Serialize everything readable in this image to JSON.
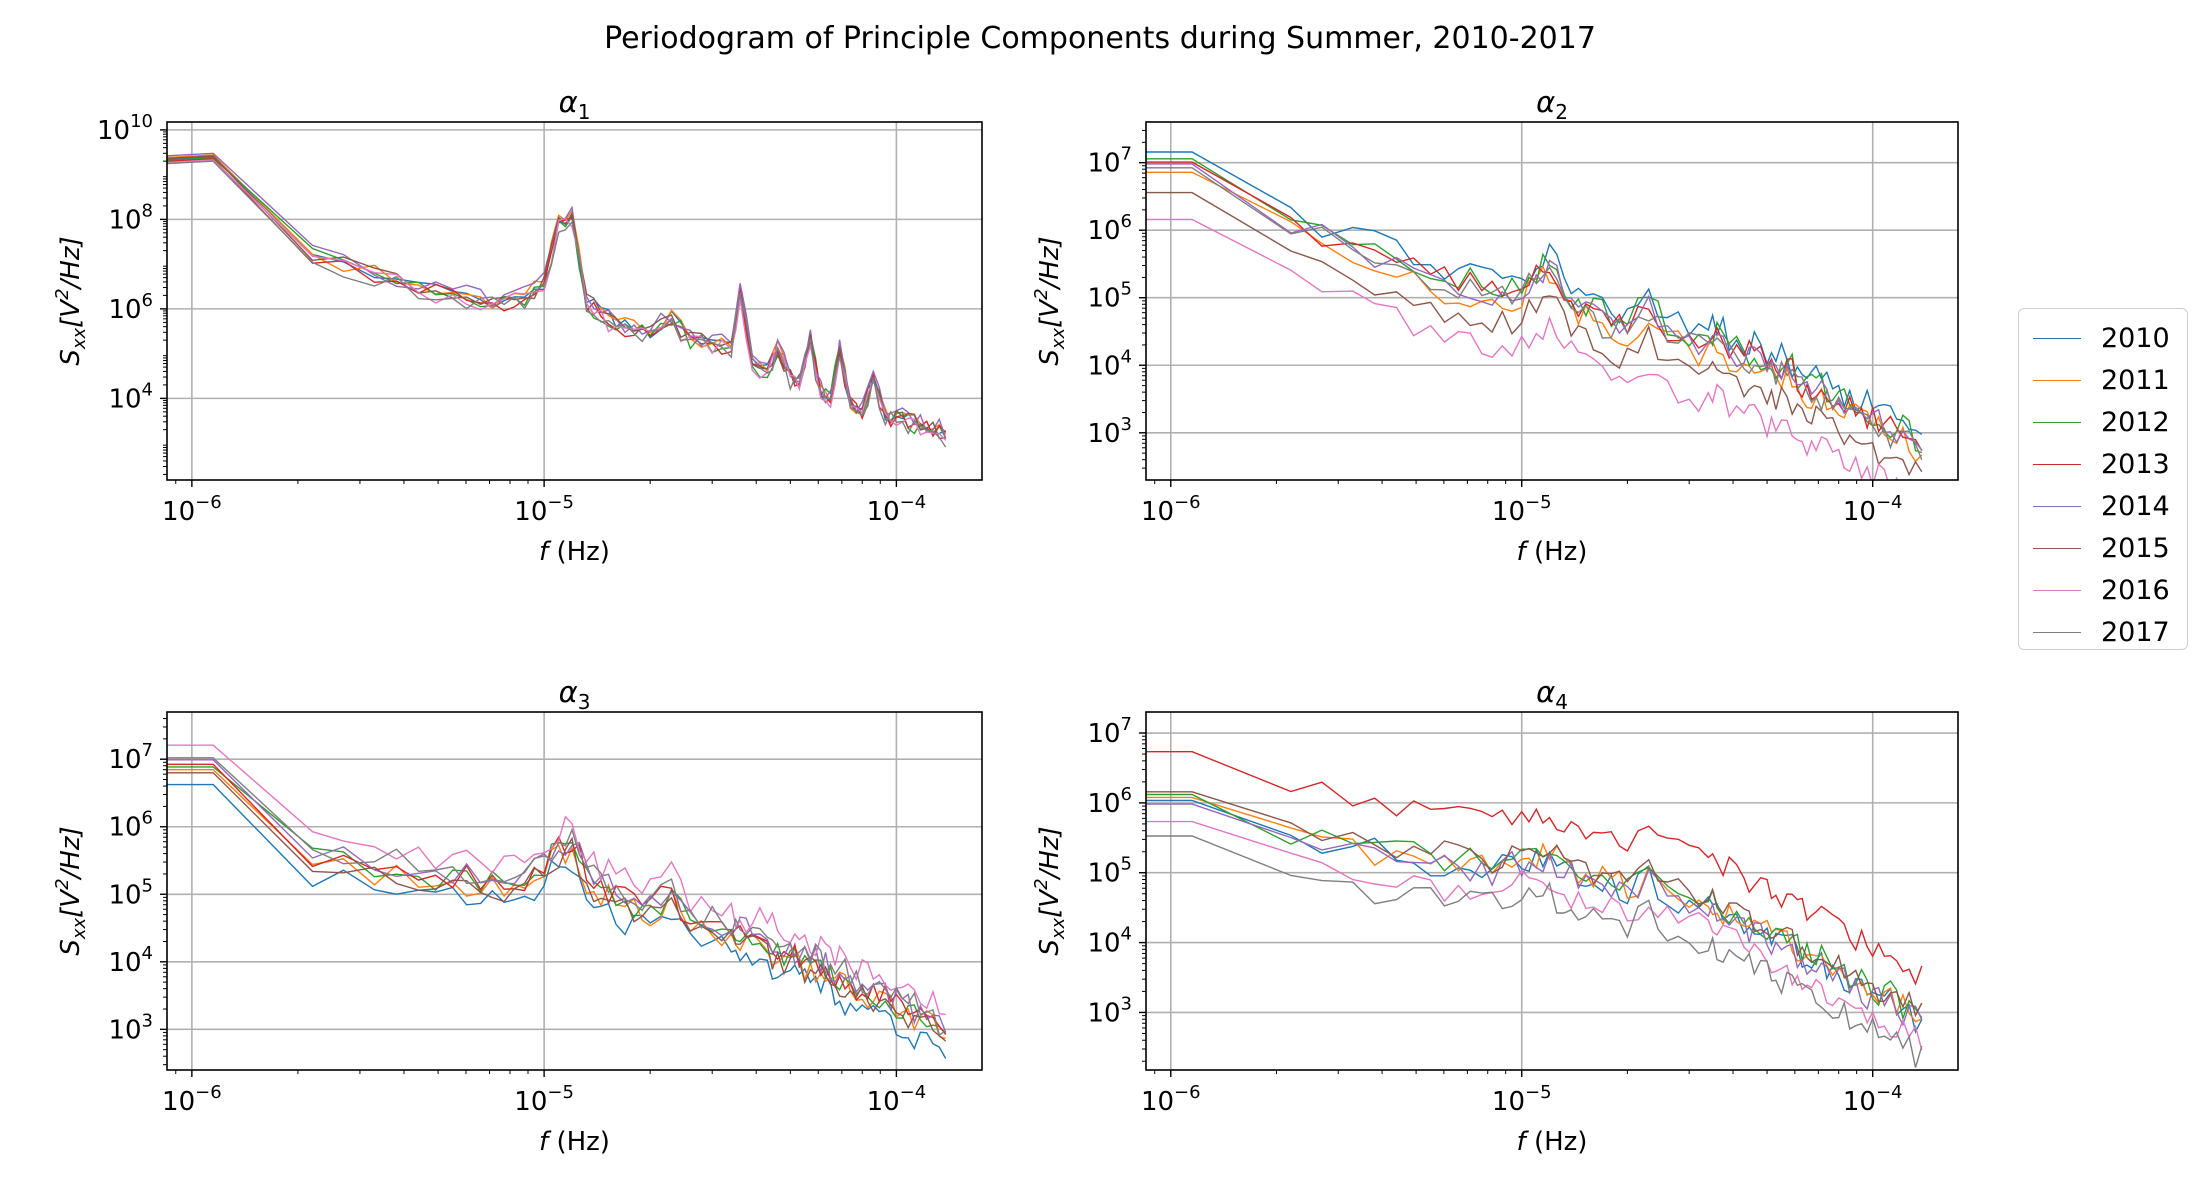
{
  "title": "Periodogram of Principle Components during Summer, 2010-2017",
  "legend": {
    "items": [
      {
        "label": "2010",
        "color": "#1f77b4"
      },
      {
        "label": "2011",
        "color": "#ff7f0e"
      },
      {
        "label": "2012",
        "color": "#2ca02c"
      },
      {
        "label": "2013",
        "color": "#d62728"
      },
      {
        "label": "2014",
        "color": "#9467bd"
      },
      {
        "label": "2015",
        "color": "#8c564b"
      },
      {
        "label": "2016",
        "color": "#e377c2"
      },
      {
        "label": "2017",
        "color": "#7f7f7f"
      }
    ]
  },
  "chart_data": [
    {
      "type": "line",
      "title": "α",
      "title_sub": "1",
      "xlabel_italic": "f",
      "xlabel_rest": " (Hz)",
      "ylabel_main": "S",
      "ylabel_sub": "xx",
      "ylabel_bracket": "[V",
      "ylabel_sup": "2",
      "ylabel_end": "/Hz]",
      "x_scale": "log",
      "y_scale": "log",
      "xlim": [
        8.5e-07,
        0.000175
      ],
      "ylim": [
        150,
        15000000000
      ],
      "xticks": [
        {
          "value": 1e-06,
          "label": "10",
          "exp": "−6"
        },
        {
          "value": 1e-05,
          "label": "10",
          "exp": "−5"
        },
        {
          "value": 0.0001,
          "label": "10",
          "exp": "−4"
        }
      ],
      "yticks": [
        {
          "value": 10000,
          "label": "10",
          "exp": "4"
        },
        {
          "value": 1000000,
          "label": "10",
          "exp": "6"
        },
        {
          "value": 100000000,
          "label": "10",
          "exp": "8"
        },
        {
          "value": 10000000000,
          "label": "10",
          "exp": "10"
        }
      ],
      "grid": true,
      "series_shape": {
        "x": [
          8.5e-07,
          1.15e-06,
          2.2e-06,
          3.3e-06,
          4.4e-06,
          5.5e-06,
          6.6e-06,
          7.7e-06,
          8.8e-06,
          1e-05,
          1.1e-05,
          1.2e-05,
          1.32e-05,
          1.45e-05,
          1.6e-05,
          1.8e-05,
          2e-05,
          2.3e-05,
          2.6e-05,
          3e-05,
          3.4e-05,
          3.6e-05,
          3.9e-05,
          4.3e-05,
          4.6e-05,
          5e-05,
          5.3e-05,
          5.7e-05,
          6.1e-05,
          6.5e-05,
          6.9e-05,
          7.4e-05,
          8e-05,
          8.6e-05,
          9.3e-05,
          0.0001,
          0.000108,
          0.000117,
          0.000127,
          0.000138
        ],
        "y": [
          2200000000,
          2500000000,
          17000000,
          6000000,
          3000000,
          2000000,
          1600000,
          1500000,
          1800000,
          4000000,
          80000000,
          110000000,
          1500000,
          800000,
          450000,
          350000,
          280000,
          600000,
          200000,
          150000,
          130000,
          2500000,
          70000,
          40000,
          130000,
          30000,
          25000,
          200000,
          14000,
          11000,
          120000,
          8000,
          6000,
          30000,
          4500,
          3500,
          3000,
          2500,
          2000,
          1500
        ]
      },
      "series_scale": [
        1.0,
        1.1,
        0.95,
        0.9,
        1.2,
        1.05,
        0.85,
        0.8
      ]
    },
    {
      "type": "line",
      "title": "α",
      "title_sub": "2",
      "xlabel_italic": "f",
      "xlabel_rest": " (Hz)",
      "ylabel_main": "S",
      "ylabel_sub": "xx",
      "ylabel_bracket": "[V",
      "ylabel_sup": "2",
      "ylabel_end": "/Hz]",
      "x_scale": "log",
      "y_scale": "log",
      "xlim": [
        8.5e-07,
        0.000175
      ],
      "ylim": [
        200,
        40000000
      ],
      "xticks": [
        {
          "value": 1e-06,
          "label": "10",
          "exp": "−6"
        },
        {
          "value": 1e-05,
          "label": "10",
          "exp": "−5"
        },
        {
          "value": 0.0001,
          "label": "10",
          "exp": "−4"
        }
      ],
      "yticks": [
        {
          "value": 1000,
          "label": "10",
          "exp": "3"
        },
        {
          "value": 10000,
          "label": "10",
          "exp": "4"
        },
        {
          "value": 100000,
          "label": "10",
          "exp": "5"
        },
        {
          "value": 1000000,
          "label": "10",
          "exp": "6"
        },
        {
          "value": 10000000,
          "label": "10",
          "exp": "7"
        }
      ],
      "grid": true,
      "series_shape": {
        "x": [
          8.5e-07,
          1.15e-06,
          2.2e-06,
          3.3e-06,
          4.4e-06,
          5.5e-06,
          6.6e-06,
          7.7e-06,
          8.8e-06,
          1e-05,
          1.1e-05,
          1.2e-05,
          1.32e-05,
          1.45e-05,
          1.6e-05,
          1.8e-05,
          2e-05,
          2.3e-05,
          2.6e-05,
          3e-05,
          3.4e-05,
          3.6e-05,
          3.9e-05,
          4.3e-05,
          4.6e-05,
          5e-05,
          5.3e-05,
          5.7e-05,
          6.1e-05,
          6.5e-05,
          6.9e-05,
          7.4e-05,
          8e-05,
          8.6e-05,
          9.3e-05,
          0.0001,
          0.000108,
          0.000117,
          0.000127,
          0.000138
        ],
        "y": [
          12000000,
          12000000,
          1500000,
          700000,
          400000,
          250000,
          200000,
          160000,
          150000,
          160000,
          250000,
          400000,
          150000,
          90000,
          70000,
          50000,
          45000,
          90000,
          40000,
          30000,
          25000,
          35000,
          20000,
          15000,
          18000,
          11000,
          9000,
          12000,
          7000,
          5500,
          6000,
          4500,
          3500,
          3000,
          2500,
          2000,
          1600,
          1300,
          1100,
          800
        ]
      },
      "series_scale": [
        1.2,
        0.6,
        0.95,
        0.85,
        0.8,
        0.3,
        0.12,
        0.7
      ]
    },
    {
      "type": "line",
      "title": "α",
      "title_sub": "3",
      "xlabel_italic": "f",
      "xlabel_rest": " (Hz)",
      "ylabel_main": "S",
      "ylabel_sub": "xx",
      "ylabel_bracket": "[V",
      "ylabel_sup": "2",
      "ylabel_end": "/Hz]",
      "x_scale": "log",
      "y_scale": "log",
      "xlim": [
        8.5e-07,
        0.000175
      ],
      "ylim": [
        250,
        50000000
      ],
      "xticks": [
        {
          "value": 1e-06,
          "label": "10",
          "exp": "−6"
        },
        {
          "value": 1e-05,
          "label": "10",
          "exp": "−5"
        },
        {
          "value": 0.0001,
          "label": "10",
          "exp": "−4"
        }
      ],
      "yticks": [
        {
          "value": 1000,
          "label": "10",
          "exp": "3"
        },
        {
          "value": 10000,
          "label": "10",
          "exp": "4"
        },
        {
          "value": 100000,
          "label": "10",
          "exp": "5"
        },
        {
          "value": 1000000,
          "label": "10",
          "exp": "6"
        },
        {
          "value": 10000000,
          "label": "10",
          "exp": "7"
        }
      ],
      "grid": true,
      "series_shape": {
        "x": [
          8.5e-07,
          1.15e-06,
          2.2e-06,
          3.3e-06,
          4.4e-06,
          5.5e-06,
          6.6e-06,
          7.7e-06,
          8.8e-06,
          1e-05,
          1.1e-05,
          1.2e-05,
          1.32e-05,
          1.45e-05,
          1.6e-05,
          1.8e-05,
          2e-05,
          2.3e-05,
          2.6e-05,
          3e-05,
          3.4e-05,
          3.6e-05,
          3.9e-05,
          4.3e-05,
          4.6e-05,
          5e-05,
          5.3e-05,
          5.7e-05,
          6.1e-05,
          6.5e-05,
          6.9e-05,
          7.4e-05,
          8e-05,
          8.6e-05,
          9.3e-05,
          0.0001,
          0.000108,
          0.000117,
          0.000127,
          0.000138
        ],
        "y": [
          7000000,
          7000000,
          300000,
          200000,
          180000,
          150000,
          130000,
          120000,
          130000,
          250000,
          400000,
          500000,
          150000,
          100000,
          80000,
          60000,
          50000,
          90000,
          35000,
          30000,
          25000,
          22000,
          18000,
          15000,
          13000,
          11000,
          9000,
          8000,
          7000,
          6000,
          5000,
          4200,
          3500,
          3000,
          2500,
          2000,
          1600,
          1300,
          1100,
          700
        ]
      },
      "series_scale": [
        0.6,
        1.0,
        1.1,
        1.2,
        1.4,
        0.9,
        2.3,
        1.5
      ]
    },
    {
      "type": "line",
      "title": "α",
      "title_sub": "4",
      "xlabel_italic": "f",
      "xlabel_rest": " (Hz)",
      "ylabel_main": "S",
      "ylabel_sub": "xx",
      "ylabel_bracket": "[V",
      "ylabel_sup": "2",
      "ylabel_end": "/Hz]",
      "x_scale": "log",
      "y_scale": "log",
      "xlim": [
        8.5e-07,
        0.000175
      ],
      "ylim": [
        150,
        20000000
      ],
      "xticks": [
        {
          "value": 1e-06,
          "label": "10",
          "exp": "−6"
        },
        {
          "value": 1e-05,
          "label": "10",
          "exp": "−5"
        },
        {
          "value": 0.0001,
          "label": "10",
          "exp": "−4"
        }
      ],
      "yticks": [
        {
          "value": 1000,
          "label": "10",
          "exp": "3"
        },
        {
          "value": 10000,
          "label": "10",
          "exp": "4"
        },
        {
          "value": 100000,
          "label": "10",
          "exp": "5"
        },
        {
          "value": 1000000,
          "label": "10",
          "exp": "6"
        },
        {
          "value": 10000000,
          "label": "10",
          "exp": "7"
        }
      ],
      "grid": true,
      "series_shape": {
        "x": [
          8.5e-07,
          1.15e-06,
          2.2e-06,
          3.3e-06,
          4.4e-06,
          5.5e-06,
          6.6e-06,
          7.7e-06,
          8.8e-06,
          1e-05,
          1.1e-05,
          1.2e-05,
          1.32e-05,
          1.45e-05,
          1.6e-05,
          1.8e-05,
          2e-05,
          2.3e-05,
          2.6e-05,
          3e-05,
          3.4e-05,
          3.6e-05,
          3.9e-05,
          4.3e-05,
          4.6e-05,
          5e-05,
          5.3e-05,
          5.7e-05,
          6.1e-05,
          6.5e-05,
          6.9e-05,
          7.4e-05,
          8e-05,
          8.6e-05,
          9.3e-05,
          0.0001,
          0.000108,
          0.000117,
          0.000127,
          0.000138
        ],
        "y": [
          1200000,
          1200000,
          300000,
          250000,
          180000,
          150000,
          140000,
          130000,
          140000,
          160000,
          170000,
          180000,
          120000,
          100000,
          80000,
          70000,
          60000,
          100000,
          50000,
          40000,
          35000,
          30000,
          25000,
          20000,
          17000,
          14000,
          12000,
          10000,
          8000,
          6500,
          5500,
          4500,
          3800,
          3000,
          2500,
          2000,
          1700,
          1400,
          1100,
          800
        ]
      },
      "series_scale": [
        0.9,
        1.0,
        1.1,
        4.5,
        0.8,
        1.2,
        0.45,
        0.28
      ]
    }
  ]
}
